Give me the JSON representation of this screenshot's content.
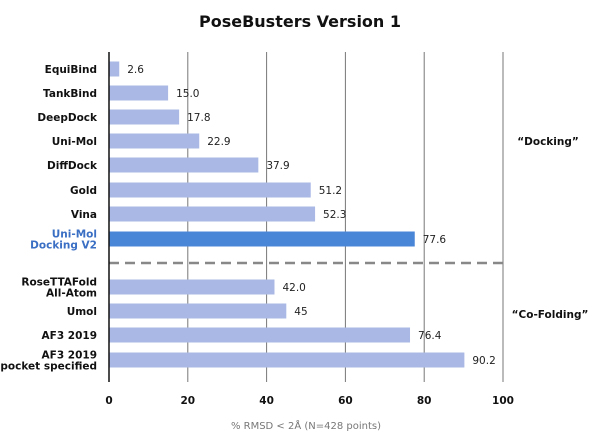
{
  "chart_data": {
    "type": "bar",
    "orientation": "horizontal",
    "title": "PoseBusters Version 1",
    "xlabel": "% RMSD < 2Å (N=428 points)",
    "ylabel": "",
    "xlim": [
      0,
      100
    ],
    "xticks": [
      "0",
      "20",
      "40",
      "60",
      "80",
      "100"
    ],
    "grid": "vertical",
    "groups": [
      {
        "label": "“Docking”",
        "items": [
          {
            "name": "EquiBind",
            "value": 2.6,
            "value_label": "2.6"
          },
          {
            "name": "TankBind",
            "value": 15.0,
            "value_label": "15.0"
          },
          {
            "name": "DeepDock",
            "value": 17.8,
            "value_label": "17.8"
          },
          {
            "name": "Uni-Mol",
            "value": 22.9,
            "value_label": "22.9"
          },
          {
            "name": "DiffDock",
            "value": 37.9,
            "value_label": "37.9"
          },
          {
            "name": "Gold",
            "value": 51.2,
            "value_label": "51.2"
          },
          {
            "name": "Vina",
            "value": 52.3,
            "value_label": "52.3"
          },
          {
            "name": "Uni-Mol\nDocking V2",
            "value": 77.6,
            "value_label": "77.6",
            "highlight": true
          }
        ]
      },
      {
        "label": "“Co-Folding”",
        "items": [
          {
            "name": "RoseTTAFold\nAll-Atom",
            "value": 42.0,
            "value_label": "42.0"
          },
          {
            "name": "Umol",
            "value": 45,
            "value_label": "45"
          },
          {
            "name": "AF3 2019",
            "value": 76.4,
            "value_label": "76.4"
          },
          {
            "name": "AF3 2019\npocket specified",
            "value": 90.2,
            "value_label": "90.2"
          }
        ]
      }
    ],
    "colors": {
      "bar": "#aab8e6",
      "bar_highlight": "#4a86d8",
      "grid": "#777777",
      "separator": "#888888"
    }
  }
}
